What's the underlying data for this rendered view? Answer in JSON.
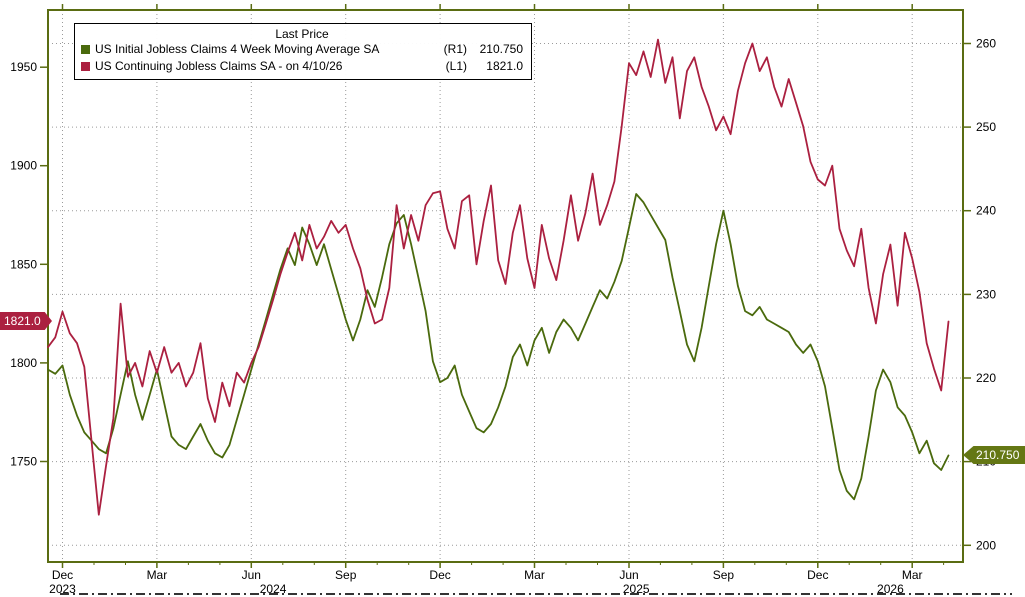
{
  "frame": {
    "background": "#ffffff",
    "axis_color": "#5a6c12",
    "grid_color": "#9a9a9a"
  },
  "chart_data": {
    "type": "line",
    "title": "Last Price",
    "legend": {
      "title": "Last Price",
      "entries": [
        {
          "label": "US Initial Jobless Claims 4 Week Moving Average SA",
          "axis_tag": "(R1)",
          "value": "210.750",
          "color": "#4a6a0d"
        },
        {
          "label": "US Continuing Jobless Claims SA -  on 4/10/26",
          "axis_tag": "(L1)",
          "value": "1821.0",
          "color": "#ab2040"
        }
      ]
    },
    "left_axis": {
      "min": 1699,
      "max": 1979,
      "ticks": [
        1750,
        1800,
        1850,
        1900,
        1950
      ]
    },
    "right_axis": {
      "min": 198,
      "max": 264,
      "ticks": [
        200,
        210,
        220,
        230,
        240,
        250,
        260
      ]
    },
    "x_axis": {
      "weeks_span": 126,
      "tick_labels": [
        "Dec",
        "Mar",
        "Jun",
        "Sep",
        "Dec",
        "Mar",
        "Jun",
        "Sep",
        "Dec",
        "Mar"
      ],
      "tick_weeks": [
        2,
        15,
        28,
        41,
        54,
        67,
        80,
        93,
        106,
        119
      ],
      "year_labels": [
        {
          "label": "2023",
          "week": 2
        },
        {
          "label": "2024",
          "week": 31
        },
        {
          "label": "2025",
          "week": 81
        },
        {
          "label": "2026",
          "week": 116
        }
      ]
    },
    "series": [
      {
        "id": "initial-claims-4wk-ma",
        "name": "US Initial Jobless Claims 4 Week Moving Average SA",
        "axis": "right",
        "color": "#4a6a0d",
        "last_price": 210.75,
        "values": [
          221,
          220.5,
          221.5,
          218,
          215.5,
          213.5,
          212.5,
          211.5,
          211,
          214,
          218,
          222,
          218,
          215,
          218,
          221,
          217,
          213,
          212,
          211.5,
          213,
          214.5,
          212.5,
          211,
          210.5,
          212,
          215,
          218,
          221,
          224,
          227,
          230,
          233,
          235.5,
          233.5,
          238,
          236,
          233.5,
          236,
          233,
          230,
          227,
          224.5,
          227,
          230.5,
          228.5,
          232,
          236,
          238.5,
          239.5,
          236,
          232,
          228,
          222,
          219.5,
          220,
          221.5,
          218,
          216,
          214,
          213.5,
          214.5,
          216.5,
          219,
          222.5,
          224,
          221.5,
          224.5,
          226,
          223,
          225.5,
          227,
          226,
          224.5,
          226.5,
          228.5,
          230.5,
          229.5,
          231.5,
          234,
          238,
          242,
          241,
          239.5,
          238,
          236.5,
          232,
          228,
          224,
          222,
          226,
          231,
          236,
          240,
          236,
          231,
          228,
          227.5,
          228.5,
          227,
          226.5,
          226,
          225.5,
          224,
          223,
          224,
          222,
          219,
          214,
          209,
          206.5,
          205.5,
          208,
          213,
          218.5,
          221,
          219.5,
          216.5,
          215.5,
          213.5,
          211,
          212.5,
          209.8,
          209,
          210.75
        ]
      },
      {
        "id": "continuing-claims",
        "name": "US Continuing Jobless Claims SA",
        "axis": "left",
        "color": "#ab2040",
        "last_price": 1821.0,
        "values": [
          1808,
          1813,
          1826,
          1815,
          1810,
          1798,
          1760,
          1723,
          1748,
          1772,
          1830,
          1793,
          1800,
          1788,
          1806,
          1795,
          1808,
          1795,
          1800,
          1788,
          1795,
          1810,
          1782,
          1770,
          1790,
          1778,
          1795,
          1790,
          1800,
          1808,
          1820,
          1832,
          1845,
          1856,
          1866,
          1852,
          1870,
          1858,
          1864,
          1872,
          1866,
          1870,
          1858,
          1848,
          1832,
          1820,
          1822,
          1838,
          1880,
          1858,
          1875,
          1862,
          1880,
          1886,
          1887,
          1868,
          1858,
          1882,
          1885,
          1850,
          1872,
          1890,
          1852,
          1840,
          1866,
          1880,
          1853,
          1838,
          1870,
          1853,
          1842,
          1862,
          1885,
          1862,
          1876,
          1896,
          1870,
          1880,
          1892,
          1920,
          1952,
          1946,
          1958,
          1945,
          1964,
          1942,
          1955,
          1924,
          1948,
          1955,
          1940,
          1930,
          1918,
          1925,
          1916,
          1938,
          1952,
          1962,
          1948,
          1955,
          1940,
          1930,
          1944,
          1932,
          1920,
          1902,
          1893,
          1890,
          1900,
          1868,
          1857,
          1849,
          1868,
          1838,
          1820,
          1845,
          1860,
          1829,
          1866,
          1853,
          1836,
          1810,
          1797,
          1786,
          1821
        ]
      }
    ],
    "price_tags": {
      "left": {
        "text": "1821.0",
        "bg": "#ab2040"
      },
      "right": {
        "text": "210.750",
        "bg": "#647714"
      }
    }
  }
}
